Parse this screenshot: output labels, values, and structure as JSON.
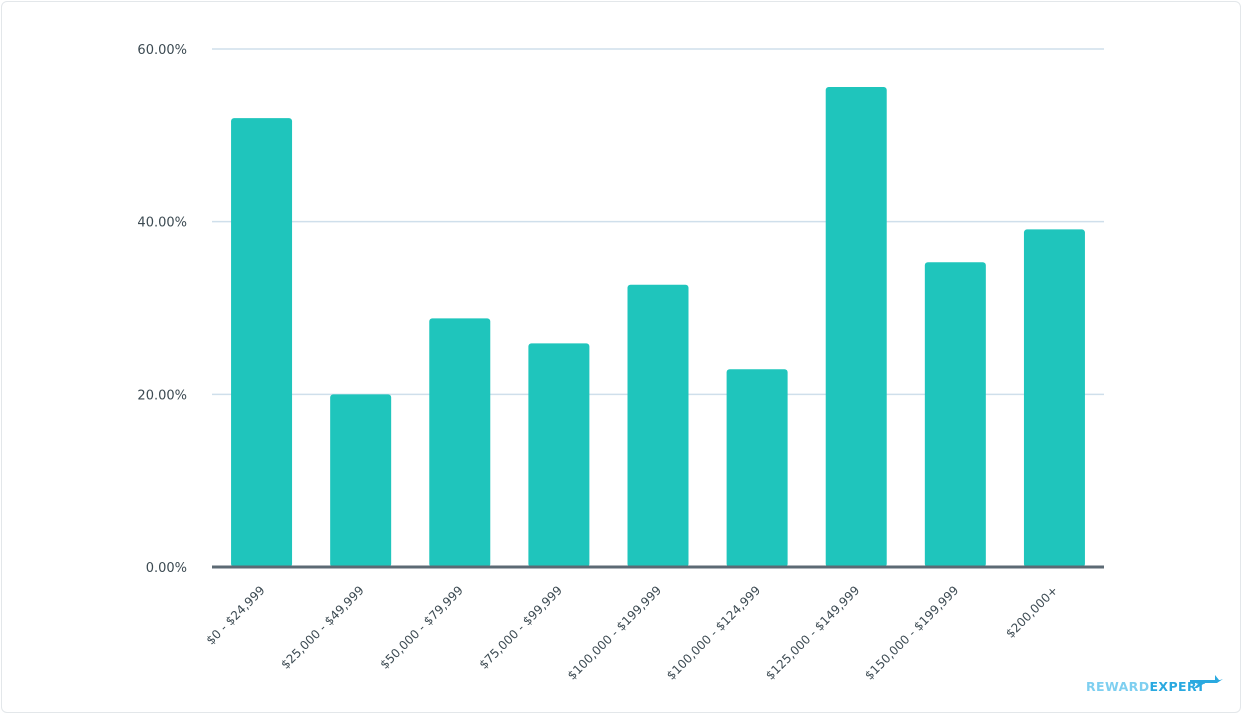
{
  "chart_data": {
    "type": "bar",
    "categories": [
      "$0 - $24,999",
      "$25,000 - $49,999",
      "$50,000 - $79,999",
      "$75,000 - $99,999",
      "$100,000 - $199,999",
      "$100,000 - $124,999",
      "$125,000 - $149,999",
      "$150,000 - $199,999",
      "$200,000+"
    ],
    "values": [
      52.0,
      20.0,
      28.8,
      25.9,
      32.7,
      22.9,
      55.6,
      35.3,
      39.1
    ],
    "ylim": [
      0,
      60
    ],
    "yticks": [
      "0.00%",
      "20.00%",
      "40.00%",
      "60.00%"
    ],
    "ytick_values": [
      0,
      20,
      40,
      60
    ],
    "bar_color": "#1fc5bc",
    "grid_color": "#cfdfeb",
    "baseline_color": "#5c6a74",
    "grid": true,
    "title": "",
    "xlabel": "",
    "ylabel": ""
  },
  "brand": {
    "logo_part1": "REWARD",
    "logo_part2": "EXPERT",
    "logo_color1": "#7ecff0",
    "logo_color2": "#2aa9e0"
  }
}
